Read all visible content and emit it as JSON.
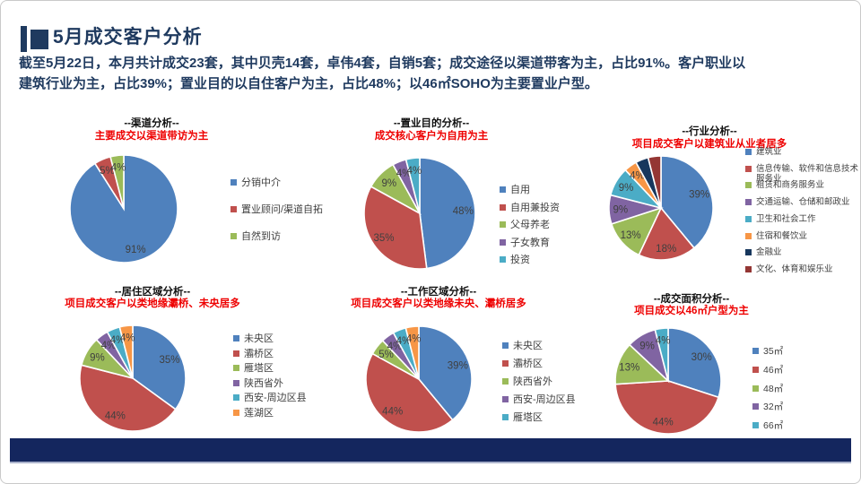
{
  "slide_header": {
    "title": "5月成交客户分析",
    "summary_lines": [
      "截至5月22日，本月共计成交23套，其中贝壳14套，卓伟4套，自销5套；成交途径以渠道带客为主，占比91%。客户职业以",
      "建筑行业为主，占比39%；置业目的以自住客户为主，占比48%；以46㎡SOHO为主要置业户型。"
    ]
  },
  "colors": {
    "title_navy": "#1f3a5f",
    "bottom_bar_navy": "#14265e",
    "subtitle_red": "#ee0000",
    "palette": [
      "#4F81BD",
      "#C0504D",
      "#9BBB59",
      "#8064A2",
      "#4BACC6",
      "#F79646",
      "#17375D",
      "#943634"
    ]
  },
  "chart_data": [
    {
      "type": "pie",
      "title": "--渠道分析--",
      "subtitle": "主要成交以渠道带访为主",
      "categories": [
        "分销中介",
        "置业顾问/渠道自拓",
        "自然到访"
      ],
      "values": [
        91,
        5,
        4
      ],
      "colors": [
        "#4F81BD",
        "#C0504D",
        "#9BBB59"
      ],
      "legend_position": "right"
    },
    {
      "type": "pie",
      "title": "--置业目的分析--",
      "subtitle": "成交核心客户为自用为主",
      "categories": [
        "自用",
        "自用兼投资",
        "父母养老",
        "子女教育",
        "投资"
      ],
      "values": [
        48,
        35,
        9,
        4,
        4
      ],
      "colors": [
        "#4F81BD",
        "#C0504D",
        "#9BBB59",
        "#8064A2",
        "#4BACC6"
      ],
      "legend_position": "right"
    },
    {
      "type": "pie",
      "title": "--行业分析--",
      "subtitle": "项目成交客户以建筑业从业者居多",
      "categories": [
        "建筑业",
        "信息传输、软件和信息技术服务业",
        "租赁和商务服务业",
        "交通运输、仓储和邮政业",
        "卫生和社会工作",
        "住宿和餐饮业",
        "金融业",
        "文化、体育和娱乐业"
      ],
      "values": [
        39,
        18,
        13,
        9,
        9,
        4,
        4,
        4
      ],
      "colors": [
        "#4F81BD",
        "#C0504D",
        "#9BBB59",
        "#8064A2",
        "#4BACC6",
        "#F79646",
        "#17375D",
        "#943634"
      ],
      "hidden_value_labels": [
        6,
        7
      ],
      "legend_position": "right"
    },
    {
      "type": "pie",
      "title": "--居住区域分析--",
      "subtitle": "项目成交客户以类地缘灞桥、未央居多",
      "categories": [
        "未央区",
        "灞桥区",
        "雁塔区",
        "陕西省外",
        "西安-周边区县",
        "莲湖区"
      ],
      "values": [
        35,
        44,
        9,
        4,
        4,
        4
      ],
      "colors": [
        "#4F81BD",
        "#C0504D",
        "#9BBB59",
        "#8064A2",
        "#4BACC6",
        "#F79646"
      ],
      "legend_position": "right"
    },
    {
      "type": "pie",
      "title": "--工作区域分析--",
      "subtitle": "项目成交客户以类地缘未央、灞桥居多",
      "categories": [
        "未央区",
        "灞桥区",
        "陕西省外",
        "西安-周边区县",
        "雁塔区",
        ""
      ],
      "values": [
        39,
        44,
        5,
        4,
        4,
        4
      ],
      "colors": [
        "#4F81BD",
        "#C0504D",
        "#9BBB59",
        "#8064A2",
        "#4BACC6",
        "#F79646"
      ],
      "legend_position": "right"
    },
    {
      "type": "pie",
      "title": "--成交面积分析--",
      "subtitle": "项目成交以46㎡户型为主",
      "categories": [
        "35㎡",
        "46㎡",
        "48㎡",
        "32㎡",
        "66㎡"
      ],
      "values": [
        30,
        44,
        13,
        9,
        4
      ],
      "colors": [
        "#4F81BD",
        "#C0504D",
        "#9BBB59",
        "#8064A2",
        "#4BACC6"
      ],
      "legend_position": "right"
    }
  ]
}
